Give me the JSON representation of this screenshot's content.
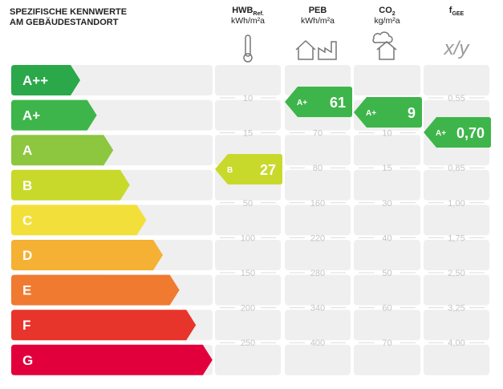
{
  "header": {
    "title_lines": [
      "SPEZIFISCHE KENNWERTE",
      "AM GEBÄUDESTANDORT"
    ]
  },
  "classes": [
    {
      "label": "A++",
      "color": "#2aa84a"
    },
    {
      "label": "A+",
      "color": "#3db54a"
    },
    {
      "label": "A",
      "color": "#8dc63f"
    },
    {
      "label": "B",
      "color": "#c8d92b"
    },
    {
      "label": "C",
      "color": "#f3df3a"
    },
    {
      "label": "D",
      "color": "#f5b133"
    },
    {
      "label": "E",
      "color": "#ef7a30"
    },
    {
      "label": "F",
      "color": "#e8352c"
    },
    {
      "label": "G",
      "color": "#e2003c"
    }
  ],
  "columns": [
    {
      "name": "HWB",
      "sub": "Ref.",
      "unit": "kWh/m²a",
      "thresholds": [
        "10",
        "15",
        null,
        "50",
        "100",
        "150",
        "200",
        "250"
      ],
      "rating": {
        "class": "B",
        "value": "27",
        "color": "#c8d92b"
      }
    },
    {
      "name": "PEB",
      "unit": "kWh/m²a",
      "thresholds": [
        null,
        "70",
        "80",
        "160",
        "220",
        "280",
        "340",
        "400"
      ],
      "rating": {
        "class": "A+",
        "value": "61",
        "color": "#3db54a"
      }
    },
    {
      "name": "CO",
      "sub": "2",
      "unit": "kg/m²a",
      "thresholds": [
        null,
        "10",
        "15",
        "30",
        "40",
        "50",
        "60",
        "70"
      ],
      "rating": {
        "class": "A+",
        "value": "9",
        "color": "#3db54a"
      }
    },
    {
      "name": "f",
      "sub": "GEE",
      "icon_text": "x/y",
      "thresholds": [
        "0,55",
        null,
        "0,85",
        "1,00",
        "1,75",
        "2,50",
        "3,25",
        "4,00"
      ],
      "rating": {
        "class": "A+",
        "value": "0,70",
        "color": "#3db54a"
      }
    }
  ]
}
